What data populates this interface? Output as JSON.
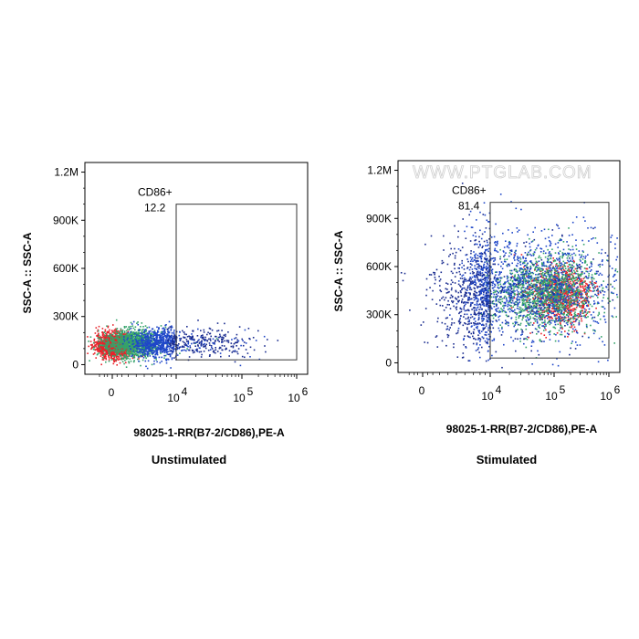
{
  "watermark": "WWW.PTGLAB.COM",
  "chart_data": [
    {
      "type": "scatter",
      "subtype": "flow-cytometry-density",
      "caption": "Unstimulated",
      "xlabel": "98025-1-RR(B7-2/CD86),PE-A",
      "ylabel": "SSC-A :: SSC-A",
      "yticks": [
        {
          "v": 0,
          "label": "0"
        },
        {
          "v": 300000,
          "label": "300K"
        },
        {
          "v": 600000,
          "label": "600K"
        },
        {
          "v": 900000,
          "label": "900K"
        },
        {
          "v": 1200000,
          "label": "1.2M"
        }
      ],
      "xticks": [
        {
          "d": 0,
          "base": "0",
          "exp": ""
        },
        {
          "d": 4,
          "base": "10",
          "exp": "4"
        },
        {
          "d": 5,
          "base": "10",
          "exp": "5"
        },
        {
          "d": 6,
          "base": "10",
          "exp": "6"
        }
      ],
      "ylim": [
        -60000,
        1260000
      ],
      "xscale": "biexponential (decades: 0, 10^4, 10^5, 10^6)",
      "gate": {
        "name": "CD86+",
        "value": "12.2",
        "x_from_decade": 4,
        "x_to_decade": 6,
        "y_from": 30000,
        "y_to": 1000000
      },
      "populations": [
        {
          "cx": 0.0,
          "cy": 125000,
          "sx": 0.55,
          "sy": 40000,
          "n": 1300,
          "color": "#e8222a"
        },
        {
          "cx": 1.2,
          "cy": 135000,
          "sx": 0.9,
          "sy": 45000,
          "n": 1100,
          "color": "#34a36a"
        },
        {
          "cx": 2.8,
          "cy": 140000,
          "sx": 0.9,
          "sy": 45000,
          "n": 700,
          "color": "#1f47c9"
        },
        {
          "cx": 4.4,
          "cy": 145000,
          "sx": 0.45,
          "sy": 45000,
          "n": 250,
          "color": "#1a2c8f"
        }
      ]
    },
    {
      "type": "scatter",
      "subtype": "flow-cytometry-density",
      "caption": "Stimulated",
      "xlabel": "98025-1-RR(B7-2/CD86),PE-A",
      "ylabel": "SSC-A :: SSC-A",
      "yticks": [
        {
          "v": 0,
          "label": "0"
        },
        {
          "v": 300000,
          "label": "300K"
        },
        {
          "v": 600000,
          "label": "600K"
        },
        {
          "v": 900000,
          "label": "900K"
        },
        {
          "v": 1200000,
          "label": "1.2M"
        }
      ],
      "xticks": [
        {
          "d": 0,
          "base": "0",
          "exp": ""
        },
        {
          "d": 4,
          "base": "10",
          "exp": "4"
        },
        {
          "d": 5,
          "base": "10",
          "exp": "5"
        },
        {
          "d": 6,
          "base": "10",
          "exp": "6"
        }
      ],
      "ylim": [
        -60000,
        1260000
      ],
      "xscale": "biexponential (decades: 0, 10^4, 10^5, 10^6)",
      "gate": {
        "name": "CD86+",
        "value": "81.4",
        "x_from_decade": 4,
        "x_to_decade": 6,
        "y_from": 30000,
        "y_to": 1000000
      },
      "populations": [
        {
          "cx": 5.1,
          "cy": 420000,
          "sx": 0.28,
          "sy": 90000,
          "n": 900,
          "color": "#e8222a"
        },
        {
          "cx": 4.9,
          "cy": 450000,
          "sx": 0.45,
          "sy": 120000,
          "n": 1300,
          "color": "#34a36a"
        },
        {
          "cx": 4.4,
          "cy": 480000,
          "sx": 0.9,
          "sy": 170000,
          "n": 1500,
          "color": "#1f47c9"
        },
        {
          "cx": 3.2,
          "cy": 440000,
          "sx": 1.4,
          "sy": 190000,
          "n": 600,
          "color": "#1a2c8f"
        }
      ]
    }
  ]
}
